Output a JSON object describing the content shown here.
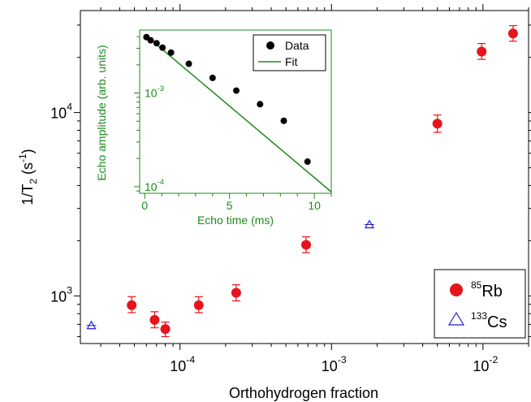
{
  "chart_data": [
    {
      "type": "scatter",
      "xlabel": "Orthohydrogen fraction",
      "ylabel_main": "1/T",
      "ylabel_sub": "2",
      "ylabel_unit_open": " (s",
      "ylabel_unit_sup": "-1",
      "ylabel_unit_close": ")",
      "x_scale": "log",
      "y_scale": "log",
      "xlim": [
        2.2e-05,
        0.02
      ],
      "ylim": [
        550,
        36000
      ],
      "x_ticklabels": [
        {
          "value": 0.0001,
          "base": "10",
          "exp": "-4"
        },
        {
          "value": 0.001,
          "base": "10",
          "exp": "-3"
        },
        {
          "value": 0.01,
          "base": "10",
          "exp": "-2"
        }
      ],
      "y_ticklabels": [
        {
          "value": 1000,
          "base": "10",
          "exp": "3"
        },
        {
          "value": 10000,
          "base": "10",
          "exp": "4"
        }
      ],
      "legend_position": "bottom-right",
      "series": [
        {
          "name_sup": "85",
          "name_main": "Rb",
          "marker": "filled-circle",
          "color": "#e8141b",
          "points": [
            {
              "x": 4.8e-05,
              "y": 890,
              "ylo": 810,
              "yhi": 990
            },
            {
              "x": 6.8e-05,
              "y": 740,
              "ylo": 670,
              "yhi": 820
            },
            {
              "x": 8e-05,
              "y": 660,
              "ylo": 600,
              "yhi": 720
            },
            {
              "x": 0.000133,
              "y": 890,
              "ylo": 810,
              "yhi": 990
            },
            {
              "x": 0.000235,
              "y": 1040,
              "ylo": 940,
              "yhi": 1150
            },
            {
              "x": 0.00068,
              "y": 1900,
              "ylo": 1720,
              "yhi": 2100
            },
            {
              "x": 0.005,
              "y": 8700,
              "ylo": 7800,
              "yhi": 9700
            },
            {
              "x": 0.0098,
              "y": 21500,
              "ylo": 19500,
              "yhi": 23800
            },
            {
              "x": 0.0158,
              "y": 27000,
              "ylo": 24500,
              "yhi": 29800
            }
          ]
        },
        {
          "name_sup": "133",
          "name_main": "Cs",
          "marker": "open-triangle",
          "color": "#1f1fd0",
          "points": [
            {
              "x": 2.6e-05,
              "y": 690
            },
            {
              "x": 0.00178,
              "y": 2450
            }
          ]
        }
      ]
    },
    {
      "type": "scatter",
      "xlabel": "Echo time (ms)",
      "ylabel": "Echo amplitude (arb. units)",
      "y_scale": "log",
      "xlim": [
        -0.3,
        11
      ],
      "ylim": [
        8.5e-05,
        0.0047
      ],
      "x_ticklabels": [
        "0",
        "5",
        "10"
      ],
      "x_ticks": [
        0,
        5,
        10
      ],
      "y_ticklabels": [
        {
          "value": 0.001,
          "base": "10",
          "exp": "-3"
        },
        {
          "value": 0.0001,
          "base": "10",
          "exp": "-4"
        }
      ],
      "axis_color": "#1e8a1e",
      "legend_position": "top-right",
      "series": [
        {
          "name": "Data",
          "marker": "filled-circle",
          "color": "#000000",
          "points": [
            {
              "x": 0.1,
              "y": 0.00395
            },
            {
              "x": 0.35,
              "y": 0.00365
            },
            {
              "x": 0.7,
              "y": 0.0034
            },
            {
              "x": 1.05,
              "y": 0.00305
            },
            {
              "x": 1.55,
              "y": 0.0027
            },
            {
              "x": 2.6,
              "y": 0.00205
            },
            {
              "x": 4.0,
              "y": 0.00145
            },
            {
              "x": 5.4,
              "y": 0.00106
            },
            {
              "x": 6.8,
              "y": 0.00076
            },
            {
              "x": 8.2,
              "y": 0.000505
            },
            {
              "x": 9.6,
              "y": 0.000185
            }
          ]
        },
        {
          "name": "Fit",
          "marker": "line",
          "color": "#1e8a1e",
          "line": [
            {
              "x": 0,
              "y": 0.0042
            },
            {
              "x": 11,
              "y": 8.8e-05
            }
          ]
        }
      ]
    }
  ]
}
